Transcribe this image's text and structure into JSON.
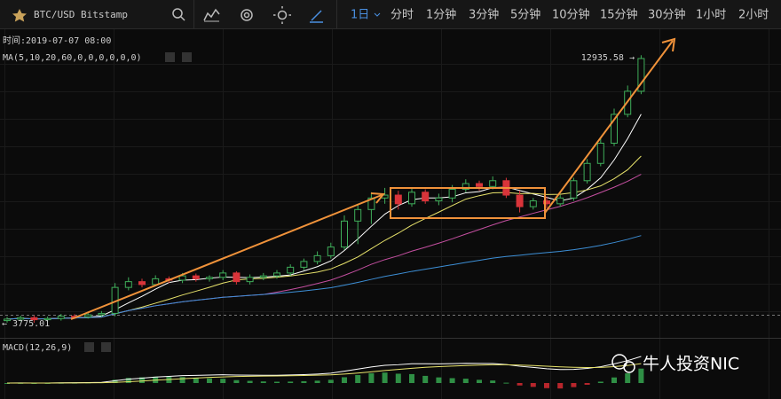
{
  "header": {
    "symbol": "BTC/USD Bitstamp",
    "intervals": [
      "1日",
      "分时",
      "1分钟",
      "3分钟",
      "5分钟",
      "10分钟",
      "15分钟",
      "30分钟",
      "1小时",
      "2小时"
    ]
  },
  "info": {
    "time": "时间:2019-07-07 08:00",
    "ma": "MA(5,10,20,60,0,0,0,0,0,0)",
    "macd": "MACD(12,26,9)"
  },
  "watermark": "牛人投资NIC",
  "chart_data": {
    "type": "candlestick",
    "open": [
      3850,
      3900,
      3950,
      3880,
      3920,
      4000,
      3980,
      4050,
      4100,
      5000,
      5200,
      5100,
      5300,
      5250,
      5400,
      5300,
      5350,
      5500,
      5200,
      5350,
      5400,
      5500,
      5700,
      5900,
      6100,
      6400,
      7300,
      7700,
      8100,
      8200,
      7900,
      8300,
      8000,
      8100,
      8400,
      8600,
      8500,
      8700,
      8200,
      7800,
      8000,
      7900,
      8100,
      8700,
      9300,
      10000,
      11000,
      11800
    ],
    "high": [
      3980,
      4020,
      4030,
      3990,
      4080,
      4070,
      4120,
      4180,
      5150,
      5350,
      5300,
      5420,
      5380,
      5500,
      5480,
      5420,
      5600,
      5560,
      5450,
      5500,
      5600,
      5800,
      6000,
      6250,
      6550,
      7500,
      7900,
      8300,
      8450,
      8350,
      8450,
      8400,
      8250,
      8550,
      8750,
      8700,
      8850,
      8800,
      8350,
      8100,
      8150,
      8200,
      8800,
      9450,
      10200,
      11200,
      12000,
      13050
    ],
    "low": [
      3780,
      3820,
      3775.01,
      3800,
      3850,
      3900,
      3920,
      3980,
      4000,
      4900,
      5000,
      5050,
      5150,
      5150,
      5200,
      5200,
      5250,
      5100,
      5100,
      5250,
      5300,
      5400,
      5600,
      5800,
      6000,
      6300,
      6500,
      7200,
      7900,
      7700,
      7800,
      7900,
      7850,
      7950,
      8300,
      8350,
      8400,
      8100,
      7600,
      7700,
      7750,
      7800,
      8000,
      8600,
      9200,
      9900,
      10900,
      11700
    ],
    "close": [
      3900,
      3950,
      3880,
      3920,
      4000,
      3980,
      4050,
      4100,
      5000,
      5200,
      5100,
      5300,
      5250,
      5400,
      5300,
      5350,
      5500,
      5200,
      5350,
      5400,
      5500,
      5700,
      5900,
      6100,
      6400,
      7300,
      7700,
      8100,
      8200,
      7900,
      8300,
      8000,
      8100,
      8400,
      8600,
      8500,
      8700,
      8200,
      7800,
      8000,
      7900,
      8100,
      8700,
      9300,
      10000,
      11000,
      11800,
      12935.58
    ],
    "last_label": "12935.58 →",
    "low_label": "← 3775.01",
    "up_color": "#3fae5a",
    "down_color": "#d9343a"
  }
}
